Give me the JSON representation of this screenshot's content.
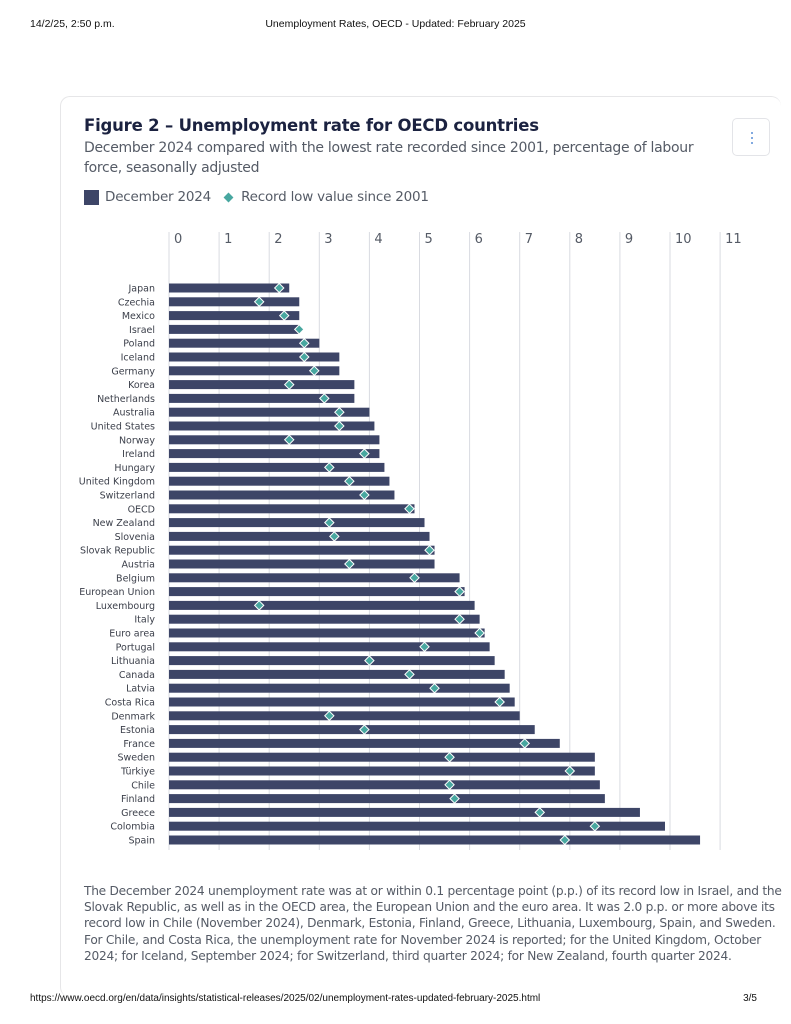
{
  "print_header": {
    "date": "14/2/25, 2:50 p.m.",
    "title": "Unemployment Rates, OECD - Updated: February 2025"
  },
  "print_footer": {
    "url": "https://www.oecd.org/en/data/insights/statistical-releases/2025/02/unemployment-rates-updated-february-2025.html",
    "page": "3/5"
  },
  "figure": {
    "title": "Figure 2 – Unemployment rate for OECD countries",
    "subtitle": "December 2024 compared with the lowest rate recorded since 2001, percentage of labour force, seasonally adjusted",
    "menu_icon": "vertical-ellipsis-icon",
    "note": "The December 2024 unemployment rate was at or within 0.1 percentage point (p.p.) of its record low in Israel, and the Slovak Republic, as well as in the OECD area, the European Union and the euro area. It was 2.0 p.p. or more above its record low in Chile (November 2024), Denmark, Estonia, Finland, Greece, Lithuania, Luxembourg, Spain, and Sweden. For Chile, and Costa Rica, the unemployment rate for November 2024 is reported; for the United Kingdom, October 2024; for Iceland, September 2024; for Switzerland, third quarter 2024; for New Zealand, fourth quarter 2024."
  },
  "colors": {
    "bar": "#3d4567",
    "marker": "#48a7a0",
    "grid": "#d9dbe1",
    "title": "#1b2240"
  },
  "chart_data": {
    "type": "bar",
    "orientation": "horizontal",
    "title": "Figure 2 – Unemployment rate for OECD countries",
    "subtitle": "December 2024 compared with the lowest rate recorded since 2001, percentage of labour force, seasonally adjusted",
    "xlabel": "",
    "ylabel": "",
    "xlim": [
      0,
      11
    ],
    "xticks": [
      "0",
      "1",
      "2",
      "3",
      "4",
      "5",
      "6",
      "7",
      "8",
      "9",
      "10",
      "11"
    ],
    "x_axis_position": "top",
    "grid": true,
    "legend": {
      "placement": "top-left",
      "entries": [
        "December 2024",
        "Record low value since 2001"
      ]
    },
    "categories": [
      "Japan",
      "Czechia",
      "Mexico",
      "Israel",
      "Poland",
      "Iceland",
      "Germany",
      "Korea",
      "Netherlands",
      "Australia",
      "United States",
      "Norway",
      "Ireland",
      "Hungary",
      "United Kingdom",
      "Switzerland",
      "OECD",
      "New Zealand",
      "Slovenia",
      "Slovak Republic",
      "Austria",
      "Belgium",
      "European Union",
      "Luxembourg",
      "Italy",
      "Euro area",
      "Portugal",
      "Lithuania",
      "Canada",
      "Latvia",
      "Costa Rica",
      "Denmark",
      "Estonia",
      "France",
      "Sweden",
      "Türkiye",
      "Chile",
      "Finland",
      "Greece",
      "Colombia",
      "Spain"
    ],
    "series": [
      {
        "name": "December 2024",
        "kind": "bar",
        "values": [
          2.4,
          2.6,
          2.6,
          2.6,
          3.0,
          3.4,
          3.4,
          3.7,
          3.7,
          4.0,
          4.1,
          4.2,
          4.2,
          4.3,
          4.4,
          4.5,
          4.9,
          5.1,
          5.2,
          5.3,
          5.3,
          5.8,
          5.9,
          6.1,
          6.2,
          6.3,
          6.4,
          6.5,
          6.7,
          6.8,
          6.9,
          7.0,
          7.3,
          7.8,
          8.5,
          8.5,
          8.6,
          8.7,
          9.4,
          9.9,
          10.6
        ]
      },
      {
        "name": "Record low value since 2001",
        "kind": "marker",
        "values": [
          2.2,
          1.8,
          2.3,
          2.6,
          2.7,
          2.7,
          2.9,
          2.4,
          3.1,
          3.4,
          3.4,
          2.4,
          3.9,
          3.2,
          3.6,
          3.9,
          4.8,
          3.2,
          3.3,
          5.2,
          3.6,
          4.9,
          5.8,
          1.8,
          5.8,
          6.2,
          5.1,
          4.0,
          4.8,
          5.3,
          6.6,
          3.2,
          3.9,
          7.1,
          5.6,
          8.0,
          5.6,
          5.7,
          7.4,
          8.5,
          7.9
        ]
      }
    ]
  }
}
